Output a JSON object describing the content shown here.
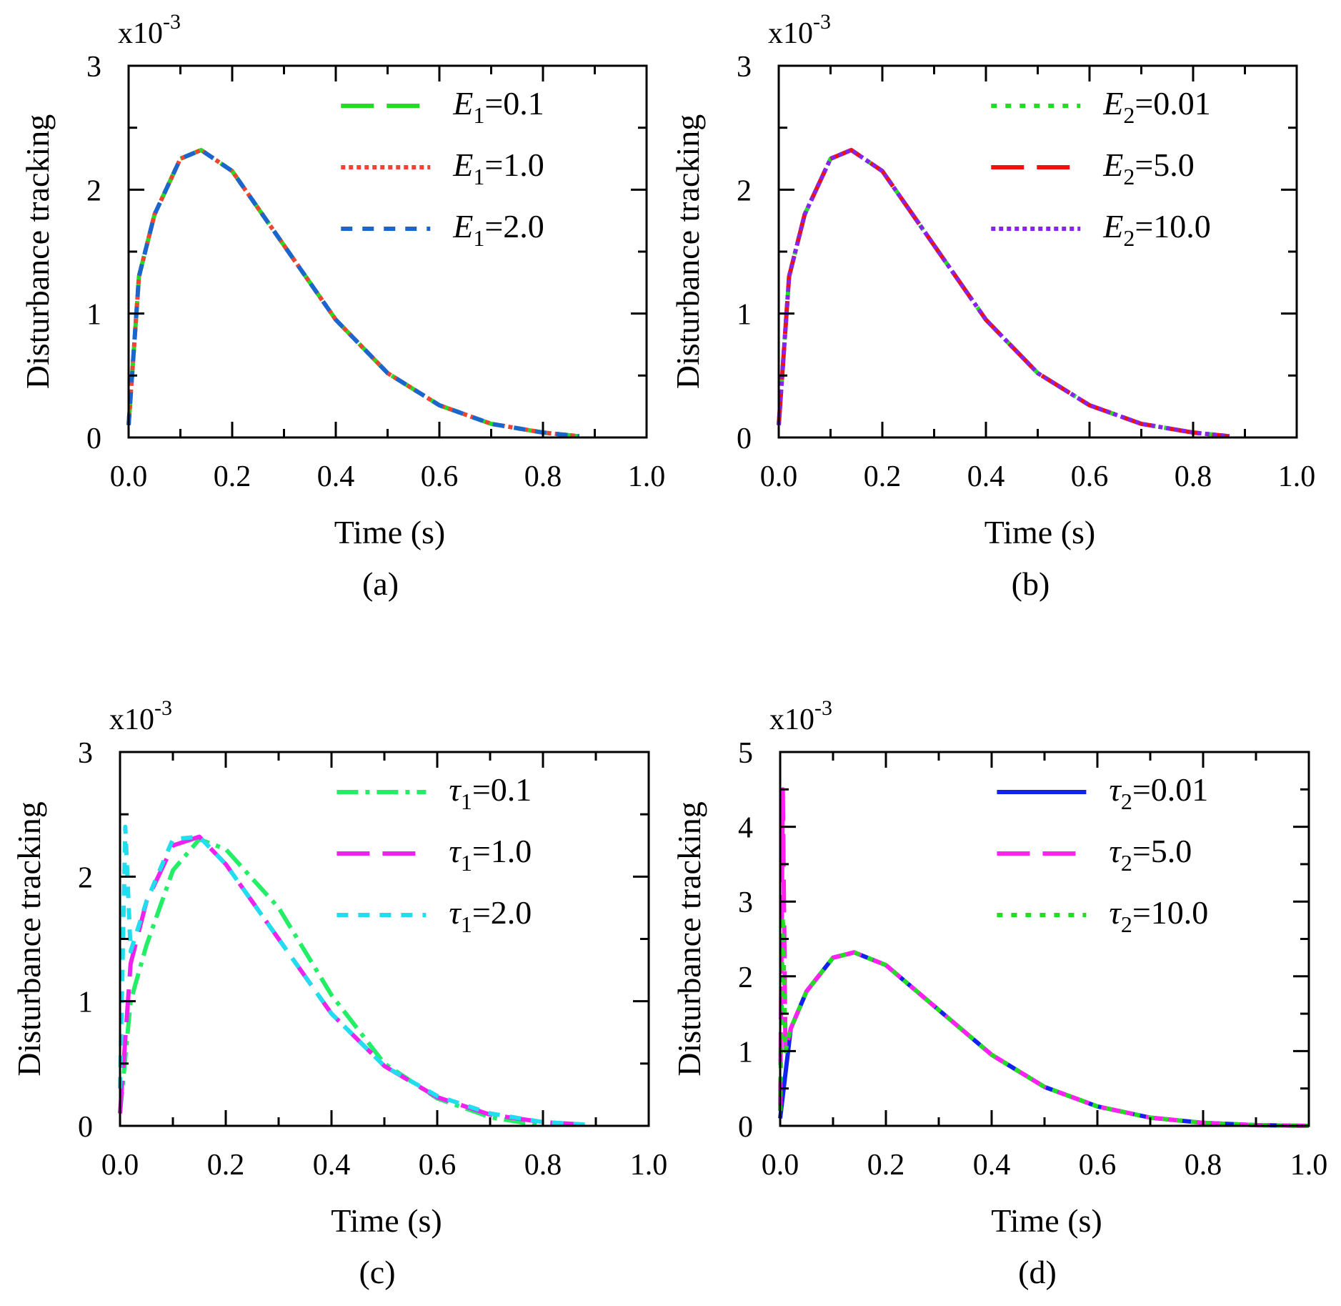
{
  "chart_data": [
    {
      "type": "line",
      "panel": "(a)",
      "xlabel": "Time (s)",
      "ylabel": "Disturbance tracking",
      "multiplier": "x10",
      "multiplier_exp": "-3",
      "xlim": [
        0.0,
        1.0
      ],
      "ylim": [
        0,
        3
      ],
      "xticks": [
        "0.0",
        "0.2",
        "0.4",
        "0.6",
        "0.8",
        "1.0"
      ],
      "yticks": [
        "0",
        "1",
        "2",
        "3"
      ],
      "legend_position": "top-right",
      "series": [
        {
          "symbol": "E",
          "sub": "1",
          "value": "=0.1",
          "color": "#22dd22",
          "dash": "46,18",
          "width": 6,
          "x": [
            0,
            0.02,
            0.05,
            0.1,
            0.14,
            0.2,
            0.3,
            0.4,
            0.5,
            0.6,
            0.7,
            0.8,
            0.87
          ],
          "y": [
            0.1,
            1.3,
            1.8,
            2.25,
            2.32,
            2.15,
            1.55,
            0.95,
            0.52,
            0.26,
            0.11,
            0.04,
            0.01
          ]
        },
        {
          "symbol": "E",
          "sub": "1",
          "value": "=1.0",
          "color": "#ee4433",
          "dash": "6,5",
          "width": 6,
          "x": [
            0,
            0.02,
            0.05,
            0.1,
            0.14,
            0.2,
            0.3,
            0.4,
            0.5,
            0.6,
            0.7,
            0.8,
            0.87
          ],
          "y": [
            0.1,
            1.3,
            1.8,
            2.25,
            2.32,
            2.15,
            1.55,
            0.95,
            0.52,
            0.26,
            0.11,
            0.04,
            0.01
          ]
        },
        {
          "symbol": "E",
          "sub": "1",
          "value": "=2.0",
          "color": "#1a66cc",
          "dash": "16,14",
          "width": 6,
          "x": [
            0,
            0.02,
            0.05,
            0.1,
            0.14,
            0.2,
            0.3,
            0.4,
            0.5,
            0.6,
            0.7,
            0.8,
            0.87
          ],
          "y": [
            0.1,
            1.3,
            1.8,
            2.25,
            2.32,
            2.15,
            1.55,
            0.95,
            0.52,
            0.26,
            0.11,
            0.04,
            0.01
          ]
        }
      ]
    },
    {
      "type": "line",
      "panel": "(b)",
      "xlabel": "Time (s)",
      "ylabel": "Disturbance tracking",
      "multiplier": "x10",
      "multiplier_exp": "-3",
      "xlim": [
        0.0,
        1.0
      ],
      "ylim": [
        0,
        3
      ],
      "xticks": [
        "0.0",
        "0.2",
        "0.4",
        "0.6",
        "0.8",
        "1.0"
      ],
      "yticks": [
        "0",
        "1",
        "2",
        "3"
      ],
      "legend_position": "top-right",
      "series": [
        {
          "symbol": "E",
          "sub": "2",
          "value": "=0.01",
          "color": "#22dd22",
          "dash": "8,12",
          "width": 6,
          "x": [
            0,
            0.02,
            0.05,
            0.1,
            0.14,
            0.2,
            0.3,
            0.4,
            0.5,
            0.6,
            0.7,
            0.8,
            0.87
          ],
          "y": [
            0.1,
            1.3,
            1.8,
            2.25,
            2.32,
            2.15,
            1.55,
            0.95,
            0.52,
            0.26,
            0.11,
            0.04,
            0.01
          ]
        },
        {
          "symbol": "E",
          "sub": "2",
          "value": "=5.0",
          "color": "#ee1111",
          "dash": "46,18",
          "width": 6,
          "x": [
            0,
            0.02,
            0.05,
            0.1,
            0.14,
            0.2,
            0.3,
            0.4,
            0.5,
            0.6,
            0.7,
            0.8,
            0.87
          ],
          "y": [
            0.1,
            1.3,
            1.8,
            2.25,
            2.32,
            2.15,
            1.55,
            0.95,
            0.52,
            0.26,
            0.11,
            0.04,
            0.01
          ]
        },
        {
          "symbol": "E",
          "sub": "2",
          "value": "=10.0",
          "color": "#8822ee",
          "dash": "6,5",
          "width": 6,
          "x": [
            0,
            0.02,
            0.05,
            0.1,
            0.14,
            0.2,
            0.3,
            0.4,
            0.5,
            0.6,
            0.7,
            0.8,
            0.87
          ],
          "y": [
            0.1,
            1.3,
            1.8,
            2.25,
            2.32,
            2.15,
            1.55,
            0.95,
            0.52,
            0.26,
            0.11,
            0.04,
            0.01
          ]
        }
      ]
    },
    {
      "type": "line",
      "panel": "(c)",
      "xlabel": "Time (s)",
      "ylabel": "Disturbance tracking",
      "multiplier": "x10",
      "multiplier_exp": "-3",
      "xlim": [
        0.0,
        1.0
      ],
      "ylim": [
        0,
        3
      ],
      "xticks": [
        "0.0",
        "0.2",
        "0.4",
        "0.6",
        "0.8",
        "1.0"
      ],
      "yticks": [
        "0",
        "1",
        "2",
        "3"
      ],
      "legend_position": "top-right",
      "series": [
        {
          "symbol": "τ",
          "sub": "1",
          "value": "=0.1",
          "color": "#22ee66",
          "dash": "30,10,6,10",
          "width": 6,
          "x": [
            0,
            0.02,
            0.05,
            0.1,
            0.15,
            0.2,
            0.3,
            0.4,
            0.5,
            0.6,
            0.7,
            0.8
          ],
          "y": [
            0.1,
            1.0,
            1.45,
            2.05,
            2.3,
            2.22,
            1.75,
            1.05,
            0.5,
            0.22,
            0.07,
            0.0
          ]
        },
        {
          "symbol": "τ",
          "sub": "1",
          "value": "=1.0",
          "color": "#ee22ee",
          "dash": "46,18",
          "width": 6,
          "x": [
            0,
            0.02,
            0.05,
            0.1,
            0.15,
            0.2,
            0.3,
            0.4,
            0.5,
            0.6,
            0.7,
            0.8,
            0.88
          ],
          "y": [
            0.1,
            1.3,
            1.8,
            2.25,
            2.32,
            2.1,
            1.5,
            0.9,
            0.48,
            0.23,
            0.09,
            0.03,
            0.01
          ]
        },
        {
          "symbol": "τ",
          "sub": "1",
          "value": "=2.0",
          "color": "#22ddee",
          "dash": "16,14",
          "width": 6,
          "x": [
            0,
            0.01,
            0.02,
            0.05,
            0.1,
            0.15,
            0.2,
            0.3,
            0.4,
            0.5,
            0.6,
            0.7,
            0.8,
            0.88
          ],
          "y": [
            0.3,
            2.4,
            1.4,
            1.8,
            2.3,
            2.32,
            2.1,
            1.5,
            0.9,
            0.48,
            0.24,
            0.1,
            0.03,
            0.01
          ]
        }
      ]
    },
    {
      "type": "line",
      "panel": "(d)",
      "xlabel": "Time (s)",
      "ylabel": "Disturbance tracking",
      "multiplier": "x10",
      "multiplier_exp": "-3",
      "xlim": [
        0.0,
        1.0
      ],
      "ylim": [
        0,
        5
      ],
      "xticks": [
        "0.0",
        "0.2",
        "0.4",
        "0.6",
        "0.8",
        "1.0"
      ],
      "yticks": [
        "0",
        "1",
        "2",
        "3",
        "4",
        "5"
      ],
      "legend_position": "top-right",
      "series": [
        {
          "symbol": "τ",
          "sub": "2",
          "value": "=0.01",
          "color": "#1122ee",
          "dash": "",
          "width": 6,
          "x": [
            0,
            0.02,
            0.05,
            0.1,
            0.14,
            0.2,
            0.3,
            0.4,
            0.5,
            0.6,
            0.7,
            0.8,
            0.9,
            1.0
          ],
          "y": [
            0.1,
            1.3,
            1.8,
            2.25,
            2.32,
            2.15,
            1.55,
            0.95,
            0.52,
            0.26,
            0.11,
            0.04,
            0.01,
            0.0
          ]
        },
        {
          "symbol": "τ",
          "sub": "2",
          "value": "=5.0",
          "color": "#ff22ee",
          "dash": "46,18",
          "width": 6,
          "x": [
            0,
            0.005,
            0.01,
            0.02,
            0.05,
            0.1,
            0.14,
            0.2,
            0.3,
            0.4,
            0.5,
            0.6,
            0.7,
            0.8,
            0.9,
            1.0
          ],
          "y": [
            0.2,
            4.5,
            1.0,
            1.3,
            1.8,
            2.25,
            2.32,
            2.15,
            1.55,
            0.95,
            0.52,
            0.26,
            0.11,
            0.04,
            0.01,
            0.0
          ]
        },
        {
          "symbol": "τ",
          "sub": "2",
          "value": "=10.0",
          "color": "#22dd22",
          "dash": "8,12",
          "width": 6,
          "x": [
            0,
            0.005,
            0.01,
            0.02,
            0.05,
            0.1,
            0.14,
            0.2,
            0.3,
            0.4,
            0.5,
            0.6,
            0.7,
            0.8,
            0.9,
            1.0
          ],
          "y": [
            0.2,
            2.8,
            1.0,
            1.3,
            1.8,
            2.25,
            2.32,
            2.15,
            1.55,
            0.95,
            0.52,
            0.26,
            0.11,
            0.04,
            0.01,
            0.0
          ]
        }
      ]
    }
  ]
}
